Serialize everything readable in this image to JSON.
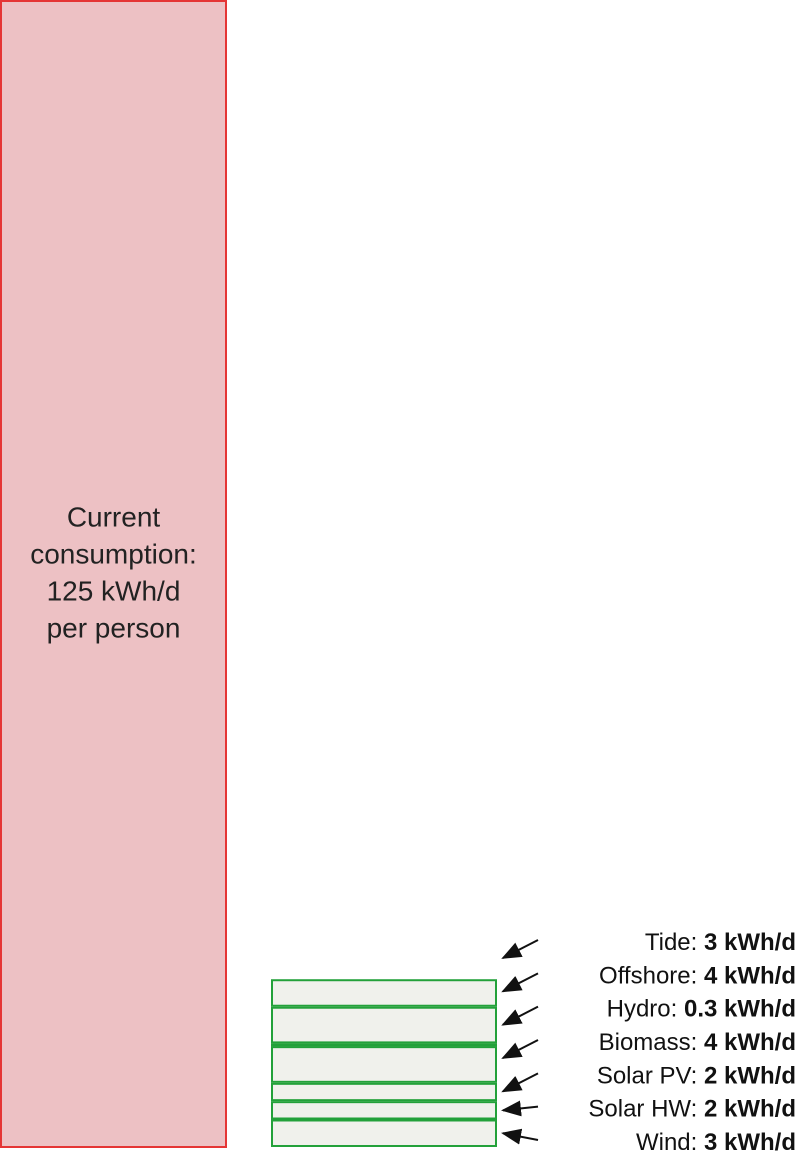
{
  "chart_data": {
    "type": "bar",
    "consumption": {
      "value": 125,
      "label_lines": [
        "Current",
        "consumption:",
        "125 kWh/d",
        "per person"
      ],
      "fill": "#edc1c4",
      "stroke": "#e53535"
    },
    "renewables": {
      "fill": "#f0f1ec",
      "stroke": "#23a13a",
      "items": [
        {
          "name": "Tide",
          "value": 3,
          "text": "Tide: ",
          "value_text": "3 kWh/d"
        },
        {
          "name": "Offshore",
          "value": 4,
          "text": "Offshore: ",
          "value_text": "4 kWh/d"
        },
        {
          "name": "Hydro",
          "value": 0.3,
          "text": "Hydro: ",
          "value_text": "0.3 kWh/d"
        },
        {
          "name": "Biomass",
          "value": 4,
          "text": "Biomass: ",
          "value_text": "4 kWh/d"
        },
        {
          "name": "Solar PV",
          "value": 2,
          "text": "Solar PV: ",
          "value_text": "2 kWh/d"
        },
        {
          "name": "Solar HW",
          "value": 2,
          "text": "Solar HW: ",
          "value_text": "2 kWh/d"
        },
        {
          "name": "Wind",
          "value": 3,
          "text": "Wind: ",
          "value_text": "3 kWh/d"
        }
      ]
    }
  }
}
